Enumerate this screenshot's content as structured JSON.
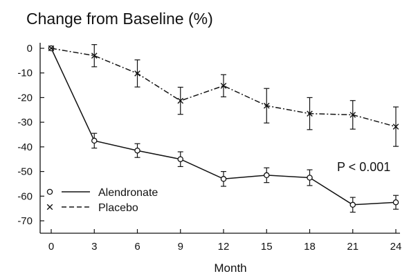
{
  "chart_data": {
    "type": "line",
    "title": "Change from Baseline (%)",
    "xlabel": "Month",
    "ylabel": "",
    "xlim": [
      0,
      24
    ],
    "ylim": [
      -70,
      0
    ],
    "xticks": [
      0,
      3,
      6,
      9,
      12,
      15,
      18,
      21,
      24
    ],
    "yticks": [
      0,
      -10,
      -20,
      -30,
      -40,
      -50,
      -60,
      -70
    ],
    "grid": false,
    "legend_position": "bottom-left",
    "annotation": "P < 0.001",
    "series": [
      {
        "name": "Alendronate",
        "marker": "o",
        "line_style": "solid",
        "color": "#111111",
        "x": [
          0,
          3,
          6,
          9,
          12,
          15,
          18,
          21,
          24
        ],
        "y": [
          0,
          -37.5,
          -41.5,
          -45,
          -53,
          -51.5,
          -52.5,
          -63.5,
          -62.5
        ],
        "error": [
          0,
          3,
          2.8,
          3,
          3,
          3,
          3.2,
          3,
          2.8
        ]
      },
      {
        "name": "Placebo",
        "marker": "x",
        "line_style": "dash-dot",
        "color": "#111111",
        "x": [
          0,
          3,
          6,
          9,
          12,
          15,
          18,
          21,
          24
        ],
        "y": [
          0,
          -3,
          -10.2,
          -21.3,
          -15.2,
          -23.3,
          -26.5,
          -27,
          -31.8
        ],
        "error": [
          0,
          4.5,
          5.5,
          5.5,
          4.5,
          7,
          6.5,
          5.8,
          8
        ]
      }
    ]
  }
}
